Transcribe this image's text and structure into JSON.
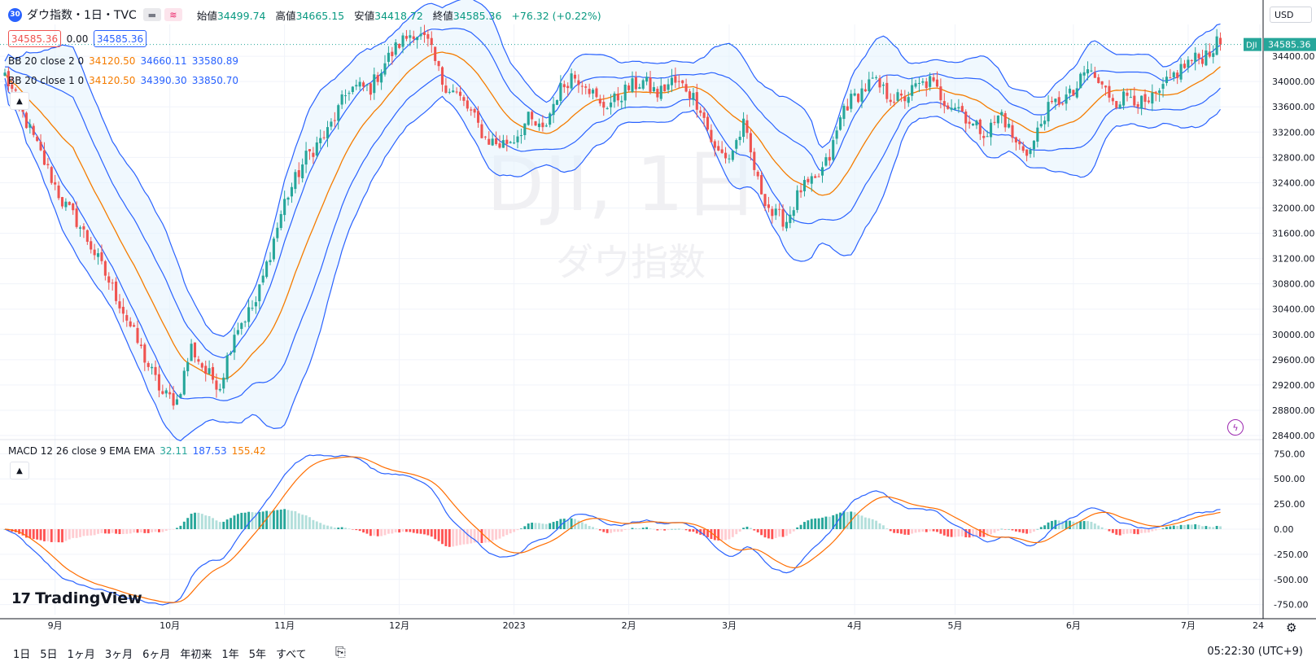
{
  "header": {
    "symbol_badge": "30",
    "title": "ダウ指数・1日・TVC",
    "open_label": "始値",
    "open": "34499.74",
    "high_label": "高値",
    "high": "34665.15",
    "low_label": "安値",
    "low": "34418.72",
    "close_label": "終値",
    "close": "34585.36",
    "change": "+76.32 (+0.22%)"
  },
  "price_boxes": {
    "bid": "34585.36",
    "spread": "0.00",
    "ask": "34585.36"
  },
  "indicators": {
    "bb2": {
      "name": "BB 20 close 2 0",
      "basis": "34120.50",
      "upper": "34660.11",
      "lower": "33580.89"
    },
    "bb1": {
      "name": "BB 20 close 1 0",
      "basis": "34120.50",
      "upper": "34390.30",
      "lower": "33850.70"
    },
    "macd": {
      "name": "MACD 12 26 close 9 EMA EMA",
      "hist": "32.11",
      "macd": "187.53",
      "signal": "155.42"
    }
  },
  "currency": "USD",
  "last_price_tag": {
    "symbol": "DJI",
    "price": "34585.36"
  },
  "watermark": {
    "line1": "DJI, 1日",
    "line2": "ダウ指数"
  },
  "brand": "TradingView",
  "timeframes": [
    "1日",
    "5日",
    "1ヶ月",
    "3ヶ月",
    "6ヶ月",
    "年初来",
    "1年",
    "5年",
    "すべて"
  ],
  "clock": "05:22:30 (UTC+9)",
  "colors": {
    "up": "#26a69a",
    "down": "#ef5350",
    "band": "#2962ff",
    "basis": "#f57c00",
    "band_fill": "#e3f2fd"
  },
  "chart_data": [
    {
      "type": "candlestick",
      "series_close_anchors": [
        [
          0,
          34100
        ],
        [
          4,
          33600
        ],
        [
          8,
          33100
        ],
        [
          12,
          32600
        ],
        [
          16,
          32100
        ],
        [
          20,
          31800
        ],
        [
          24,
          31400
        ],
        [
          28,
          30950
        ],
        [
          32,
          30500
        ],
        [
          36,
          30000
        ],
        [
          40,
          29500
        ],
        [
          44,
          29050
        ],
        [
          48,
          28950
        ],
        [
          52,
          29800
        ],
        [
          56,
          29400
        ],
        [
          60,
          29200
        ],
        [
          64,
          30050
        ],
        [
          70,
          30500
        ],
        [
          74,
          31300
        ],
        [
          78,
          32100
        ],
        [
          84,
          32800
        ],
        [
          90,
          33200
        ],
        [
          96,
          33900
        ],
        [
          102,
          33900
        ],
        [
          106,
          34300
        ],
        [
          110,
          34600
        ],
        [
          114,
          34800
        ],
        [
          118,
          34600
        ],
        [
          122,
          34000
        ],
        [
          126,
          33800
        ],
        [
          130,
          33500
        ],
        [
          134,
          33100
        ],
        [
          138,
          33000
        ],
        [
          142,
          33100
        ],
        [
          146,
          33400
        ],
        [
          150,
          33200
        ],
        [
          154,
          33800
        ],
        [
          158,
          34100
        ],
        [
          162,
          34000
        ],
        [
          166,
          33600
        ],
        [
          170,
          33700
        ],
        [
          174,
          33900
        ],
        [
          178,
          34000
        ],
        [
          182,
          33800
        ],
        [
          186,
          34000
        ],
        [
          190,
          33900
        ],
        [
          194,
          33600
        ],
        [
          198,
          32900
        ],
        [
          202,
          32800
        ],
        [
          206,
          33300
        ],
        [
          210,
          32400
        ],
        [
          214,
          31900
        ],
        [
          218,
          31800
        ],
        [
          222,
          32300
        ],
        [
          226,
          32400
        ],
        [
          230,
          32800
        ],
        [
          234,
          33600
        ],
        [
          238,
          33800
        ],
        [
          242,
          34000
        ],
        [
          246,
          33800
        ],
        [
          250,
          33700
        ],
        [
          254,
          33900
        ],
        [
          258,
          34000
        ],
        [
          262,
          33700
        ],
        [
          266,
          33600
        ],
        [
          270,
          33300
        ],
        [
          274,
          33200
        ],
        [
          278,
          33500
        ],
        [
          282,
          33000
        ],
        [
          286,
          32900
        ],
        [
          290,
          33500
        ],
        [
          294,
          33700
        ],
        [
          298,
          33800
        ],
        [
          302,
          34200
        ],
        [
          306,
          33900
        ],
        [
          310,
          33700
        ],
        [
          314,
          33800
        ],
        [
          318,
          33600
        ],
        [
          322,
          33800
        ],
        [
          326,
          34100
        ],
        [
          330,
          34300
        ],
        [
          334,
          34400
        ],
        [
          338,
          34585.36
        ]
      ],
      "ylim": [
        28400,
        34800
      ],
      "y_ticks": [
        34400,
        34000,
        33600,
        33200,
        32800,
        32400,
        32000,
        31600,
        31200,
        30800,
        30400,
        30000,
        29600,
        29200,
        28800,
        28400
      ],
      "x_labels": [
        {
          "label": "9月",
          "i": 14
        },
        {
          "label": "10月",
          "i": 46
        },
        {
          "label": "11月",
          "i": 78
        },
        {
          "label": "12月",
          "i": 110
        },
        {
          "label": "2023",
          "i": 142
        },
        {
          "label": "2月",
          "i": 174
        },
        {
          "label": "3月",
          "i": 202
        },
        {
          "label": "4月",
          "i": 237
        },
        {
          "label": "5月",
          "i": 265
        },
        {
          "label": "6月",
          "i": 298
        },
        {
          "label": "7月",
          "i": 330
        },
        {
          "label": "24",
          "i": 350
        }
      ],
      "n_bars": 340,
      "bollinger": {
        "period": 20,
        "mult": [
          2,
          1
        ]
      }
    },
    {
      "type": "macd",
      "ylim": [
        -850,
        850
      ],
      "y_ticks": [
        750,
        500,
        250,
        0,
        -250,
        -500,
        -750
      ],
      "fast": 12,
      "slow": 26,
      "signal": 9
    }
  ]
}
